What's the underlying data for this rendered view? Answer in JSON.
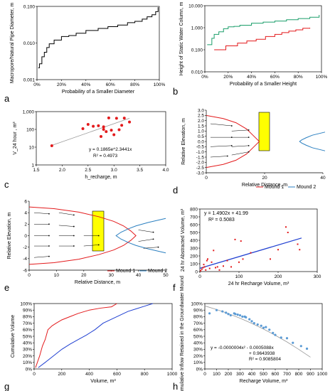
{
  "colors": {
    "red": "#e31a1c",
    "blue": "#1f3fd1",
    "green": "#1a9e6a",
    "black": "#000000",
    "grey": "#999999",
    "lightblue": "#5b9bd5",
    "yellow": "#ffff00",
    "teal": "#2a7fc0"
  },
  "chart_data": [
    {
      "panel": "a",
      "type": "line",
      "xlabel": "Probability of a Smaller Diameter",
      "ylabel": "Macropore/Natural Pipe Diameter, m",
      "xticks": [
        "0%",
        "20%",
        "40%",
        "60%",
        "80%",
        "100%"
      ],
      "yticks": [
        "0.001",
        "0.010",
        "0.100"
      ],
      "xlim": [
        0,
        1
      ],
      "ylim": [
        0.001,
        0.1
      ],
      "yscale": "log",
      "series": [
        {
          "color": "#000000",
          "x": [
            0.01,
            0.02,
            0.04,
            0.06,
            0.08,
            0.1,
            0.14,
            0.2,
            0.26,
            0.32,
            0.4,
            0.5,
            0.58,
            0.66,
            0.74,
            0.8,
            0.86,
            0.9,
            0.94,
            0.97,
            0.99
          ],
          "y": [
            0.0021,
            0.0027,
            0.0042,
            0.0056,
            0.0075,
            0.0095,
            0.012,
            0.015,
            0.016,
            0.0185,
            0.022,
            0.025,
            0.028,
            0.031,
            0.036,
            0.039,
            0.045,
            0.052,
            0.059,
            0.072,
            0.095
          ]
        }
      ]
    },
    {
      "panel": "b",
      "type": "line",
      "xlabel": "Probability of a Smaller Height",
      "ylabel": "Height of Static Water Column, m",
      "xticks": [
        "0%",
        "20%",
        "40%",
        "60%",
        "80%",
        "100%"
      ],
      "yticks": [
        "0.010",
        "0.100",
        "1.000",
        "10.000"
      ],
      "xlim": [
        0,
        1
      ],
      "ylim": [
        0.01,
        10
      ],
      "yscale": "log",
      "series": [
        {
          "color": "#1a9e6a",
          "x": [
            0.02,
            0.06,
            0.08,
            0.12,
            0.16,
            0.2,
            0.25,
            0.3,
            0.4,
            0.5,
            0.6,
            0.7,
            0.8,
            0.9,
            0.98
          ],
          "y": [
            0.17,
            0.33,
            0.5,
            0.65,
            0.9,
            1.1,
            1.15,
            1.3,
            1.6,
            1.8,
            2.0,
            2.3,
            2.6,
            3.0,
            3.8
          ]
        },
        {
          "color": "#e31a1c",
          "x": [
            0.08,
            0.14,
            0.18,
            0.22,
            0.28,
            0.36,
            0.44,
            0.52,
            0.6,
            0.66,
            0.72,
            0.78,
            0.84,
            0.9
          ],
          "y": [
            0.1,
            0.1,
            0.15,
            0.15,
            0.2,
            0.25,
            0.3,
            0.4,
            0.5,
            0.6,
            0.7,
            0.8,
            0.95,
            1.0
          ]
        }
      ]
    },
    {
      "panel": "c",
      "type": "scatter",
      "xlabel": "h_recharge, m",
      "ylabel": "V_24 hour , m³",
      "xticks": [
        "1.5",
        "2.0",
        "2.5",
        "3.0",
        "3.5",
        "4.0"
      ],
      "yticks": [
        "1",
        "10",
        "100",
        "1,000"
      ],
      "xlim": [
        1.5,
        4.0
      ],
      "ylim": [
        1,
        1000
      ],
      "yscale": "log",
      "equation": "y = 0.1865e^2.3441x",
      "r2": "R² = 0.4973",
      "points": {
        "x": [
          1.8,
          2.4,
          2.5,
          2.6,
          2.7,
          2.75,
          2.8,
          2.8,
          2.85,
          2.9,
          2.95,
          3.0,
          3.05,
          3.1,
          3.15,
          3.2,
          3.3
        ],
        "y": [
          12,
          110,
          190,
          150,
          160,
          40,
          140,
          100,
          75,
          440,
          90,
          50,
          420,
          95,
          170,
          430,
          260
        ]
      },
      "trend": {
        "x": [
          1.8,
          3.3
        ],
        "y": [
          12.6,
          420
        ]
      }
    },
    {
      "panel": "d",
      "type": "line",
      "xlabel": "Relative Distance, m",
      "ylabel": "Relative Elevation, m",
      "xticks": [
        "0",
        "20",
        "40"
      ],
      "yticks": [
        "-3.0",
        "-2.5",
        "-2.0",
        "-1.5",
        "-1.0",
        "-0.5",
        "0.0",
        "0.5",
        "1.0",
        "1.5",
        "2.0",
        "2.5",
        "3.0"
      ],
      "xlim": [
        0,
        55
      ],
      "ylim": [
        -3,
        3
      ],
      "legend": [
        "Mound 1",
        "Mound 2"
      ],
      "series": [
        {
          "name": "Mound 1",
          "color": "#e31a1c",
          "x": [
            0,
            8,
            14,
            19,
            22,
            24,
            25,
            24,
            22,
            19,
            14,
            8,
            0
          ],
          "y": [
            2.5,
            2.2,
            1.8,
            1.2,
            0.6,
            0.2,
            0,
            -0.2,
            -0.6,
            -1.2,
            -1.8,
            -2.2,
            -2.5
          ]
        },
        {
          "name": "Mound 2",
          "color": "#2a7fc0",
          "x": [
            56,
            50,
            47,
            45,
            44,
            45,
            47,
            50,
            56
          ],
          "y": [
            0.9,
            0.6,
            0.35,
            0.15,
            0,
            -0.15,
            -0.35,
            -0.6,
            -0.9
          ]
        }
      ]
    },
    {
      "panel": "e",
      "type": "line",
      "xlabel": "Relative Distance, m",
      "ylabel": "Relative Elevation, m",
      "xticks": [
        "0",
        "10",
        "20",
        "30",
        "40",
        "50"
      ],
      "yticks": [
        "-6",
        "-4",
        "-2",
        "0",
        "2",
        "4",
        "6"
      ],
      "xlim": [
        0,
        55
      ],
      "ylim": [
        -6,
        6
      ],
      "legend": [
        "Mound 1",
        "Mound 2"
      ],
      "series": [
        {
          "name": "Mound 1",
          "color": "#e31a1c",
          "x": [
            0,
            10,
            20,
            28,
            34,
            38,
            41,
            43,
            41,
            38,
            34,
            28,
            20,
            10,
            0
          ],
          "y": [
            5,
            4.7,
            4.1,
            3.3,
            2.5,
            1.7,
            0.8,
            0,
            -0.8,
            -1.7,
            -2.5,
            -3.3,
            -4.1,
            -4.7,
            -5
          ]
        },
        {
          "name": "Mound 2",
          "color": "#2a7fc0",
          "x": [
            55,
            48,
            43,
            40,
            37,
            35,
            37,
            40,
            43,
            48,
            55
          ],
          "y": [
            3,
            2.3,
            1.7,
            1.2,
            0.6,
            0,
            -0.6,
            -1.2,
            -1.7,
            -2.3,
            -3
          ]
        }
      ]
    },
    {
      "panel": "f",
      "type": "scatter",
      "xlabel": "24 hr Recharge Volume, m³",
      "ylabel": "24 hr Abstracted Volume, m³",
      "xticks": [
        "0",
        "100",
        "200",
        "300"
      ],
      "yticks": [
        "0",
        "100",
        "200",
        "300",
        "400",
        "500",
        "600",
        "700",
        "800"
      ],
      "xlim": [
        0,
        300
      ],
      "ylim": [
        0,
        800
      ],
      "equation": "y = 1.4902x + 41.99",
      "r2": "R² = 0.5083",
      "points": {
        "x": [
          2,
          5,
          8,
          10,
          12,
          15,
          18,
          20,
          25,
          30,
          35,
          40,
          45,
          50,
          60,
          70,
          80,
          90,
          100,
          105,
          110,
          130,
          180,
          200,
          220,
          225,
          250,
          255
        ],
        "y": [
          10,
          30,
          50,
          90,
          60,
          20,
          140,
          160,
          40,
          120,
          270,
          50,
          60,
          20,
          70,
          140,
          60,
          410,
          120,
          390,
          160,
          240,
          160,
          280,
          570,
          500,
          350,
          280
        ]
      },
      "trend": {
        "x": [
          0,
          260
        ],
        "y": [
          42,
          429
        ]
      }
    },
    {
      "panel": "g",
      "type": "line",
      "xlabel": "Volume, m³",
      "ylabel": "Cumulative Volume",
      "xticks": [
        "0",
        "200",
        "400",
        "600",
        "800",
        "1000"
      ],
      "yticks": [
        "0%",
        "10%",
        "20%",
        "30%",
        "40%",
        "50%",
        "60%",
        "70%",
        "80%",
        "90%",
        "100%"
      ],
      "xlim": [
        0,
        1000
      ],
      "ylim": [
        0,
        1
      ],
      "series": [
        {
          "color": "#e31a1c",
          "x": [
            10,
            40,
            60,
            80,
            100,
            130,
            160,
            200,
            260,
            320,
            400,
            480,
            560,
            600
          ],
          "y": [
            0.02,
            0.2,
            0.35,
            0.45,
            0.6,
            0.66,
            0.7,
            0.75,
            0.8,
            0.85,
            0.9,
            0.93,
            0.95,
            1.0
          ]
        },
        {
          "color": "#1f3fd1",
          "x": [
            30,
            80,
            140,
            200,
            260,
            320,
            380,
            440,
            500,
            560,
            620,
            680,
            740,
            800,
            860
          ],
          "y": [
            0.02,
            0.1,
            0.2,
            0.3,
            0.38,
            0.45,
            0.52,
            0.6,
            0.7,
            0.76,
            0.82,
            0.88,
            0.92,
            0.96,
            1.0
          ]
        }
      ]
    },
    {
      "panel": "h",
      "type": "scatter",
      "xlabel": "Recharge Volume, m³",
      "ylabel": "Cumulative Inflow Retained in the Groundwater Mound",
      "xticks": [
        "0",
        "100",
        "200",
        "300",
        "400",
        "500",
        "600",
        "700",
        "800",
        "900",
        "1000"
      ],
      "yticks": [
        "0%",
        "10%",
        "20%",
        "30%",
        "40%",
        "50%",
        "60%",
        "70%",
        "80%",
        "90%",
        "100%"
      ],
      "xlim": [
        0,
        1000
      ],
      "ylim": [
        0,
        1
      ],
      "equation": "y = -0.0000004x² - 0.0005088x",
      "equation2": "+ 0.9643938",
      "r2": "R² = 0.9085804",
      "points": {
        "x": [
          40,
          100,
          150,
          180,
          200,
          220,
          250,
          260,
          280,
          300,
          320,
          340,
          350,
          380,
          400,
          420,
          450,
          480,
          500,
          520,
          550,
          580,
          600,
          650,
          700,
          750,
          820,
          870
        ],
        "y": [
          0.85,
          0.9,
          0.88,
          0.86,
          0.84,
          0.82,
          0.85,
          0.84,
          0.83,
          0.82,
          0.8,
          0.8,
          0.79,
          0.76,
          0.73,
          0.7,
          0.68,
          0.66,
          0.63,
          0.64,
          0.6,
          0.55,
          0.52,
          0.48,
          0.47,
          0.4,
          0.35,
          0.31
        ]
      },
      "trend": {
        "x": [
          0,
          100,
          200,
          300,
          400,
          500,
          600,
          700,
          800,
          900
        ],
        "y": [
          0.964,
          0.909,
          0.847,
          0.776,
          0.697,
          0.61,
          0.515,
          0.413,
          0.3,
          0.18
        ]
      }
    }
  ],
  "panel_letters": [
    "a",
    "b",
    "c",
    "d",
    "e",
    "f",
    "g",
    "h"
  ]
}
